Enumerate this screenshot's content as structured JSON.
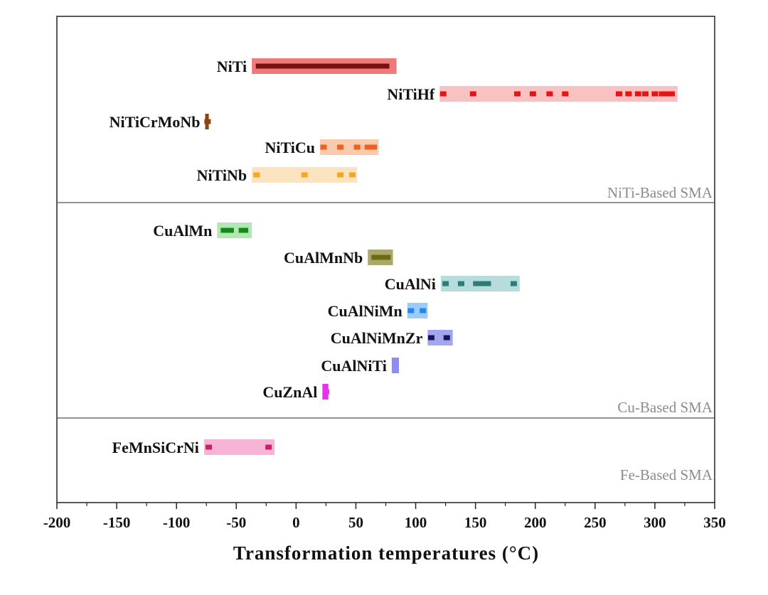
{
  "chart_data": {
    "type": "range-bar",
    "xlabel": "Transformation temperatures (°C)",
    "xlim": [
      -200,
      350
    ],
    "xticks": [
      -200,
      -150,
      -100,
      -50,
      0,
      50,
      100,
      150,
      200,
      250,
      300,
      350
    ],
    "groups": [
      {
        "label": "NiTi-Based SMA",
        "alloys": [
          {
            "name": "NiTi",
            "range": [
              -37,
              84
            ],
            "color": "#ee7a7a",
            "marker_color": "#7a1010",
            "markers": [
              -31,
              0,
              30,
              52,
              75
            ],
            "segments": [
              [
                -33,
                78
              ]
            ]
          },
          {
            "name": "NiTiHf",
            "range": [
              120,
              319
            ],
            "color": "#f9c2c2",
            "marker_color": "#ee1111",
            "markers": [
              123,
              148,
              185,
              198,
              212,
              225,
              270,
              278,
              286,
              292,
              300,
              306,
              310,
              314
            ],
            "segments": []
          },
          {
            "name": "NiTiCrMoNb",
            "range": [
              -76,
              -73
            ],
            "color": "#8b4513",
            "marker_color": "#8b4513",
            "markers": [
              -74
            ],
            "segments": []
          },
          {
            "name": "NiTiCu",
            "range": [
              20,
              69
            ],
            "color": "#fbc9ad",
            "marker_color": "#ee6020",
            "markers": [
              23,
              37,
              51,
              60,
              65
            ],
            "segments": []
          },
          {
            "name": "NiTiNb",
            "range": [
              -37,
              51
            ],
            "color": "#fce3bf",
            "marker_color": "#f5a623",
            "markers": [
              -33,
              7,
              37,
              47
            ],
            "segments": []
          }
        ]
      },
      {
        "label": "Cu-Based SMA",
        "alloys": [
          {
            "name": "CuAlMn",
            "range": [
              -66,
              -37
            ],
            "color": "#b3e6b3",
            "marker_color": "#138a13",
            "markers": [],
            "segments": [
              [
                -63,
                -52
              ],
              [
                -48,
                -40
              ]
            ]
          },
          {
            "name": "CuAlMnNb",
            "range": [
              60,
              81
            ],
            "color": "#a8a868",
            "marker_color": "#6b6b10",
            "markers": [],
            "segments": [
              [
                63,
                79
              ]
            ]
          },
          {
            "name": "CuAlNi",
            "range": [
              121,
              187
            ],
            "color": "#b6dcdc",
            "marker_color": "#2e7c74",
            "markers": [
              125,
              138,
              182
            ],
            "segments": [
              [
                148,
                163
              ]
            ]
          },
          {
            "name": "CuAlNiMn",
            "range": [
              93,
              110
            ],
            "color": "#9ccbf7",
            "marker_color": "#1e8af0",
            "markers": [
              96,
              106
            ],
            "segments": []
          },
          {
            "name": "CuAlNiMnZr",
            "range": [
              110,
              131
            ],
            "color": "#a5a5ee",
            "marker_color": "#131360",
            "markers": [
              113,
              126
            ],
            "segments": []
          },
          {
            "name": "CuAlNiTi",
            "range": [
              80,
              86
            ],
            "color": "#8c8cf2",
            "marker_color": "#8c8cf2",
            "markers": [
              83
            ],
            "segments": []
          },
          {
            "name": "CuZnAl",
            "range": [
              22,
              27
            ],
            "color": "#e832e8",
            "marker_color": "#e832e8",
            "markers": [
              25
            ],
            "segments": []
          }
        ]
      },
      {
        "label": "Fe-Based SMA",
        "alloys": [
          {
            "name": "FeMnSiCrNi",
            "range": [
              -77,
              -18
            ],
            "color": "#f8b4d4",
            "marker_color": "#d01a75",
            "markers": [
              -73,
              -23
            ],
            "segments": []
          }
        ]
      }
    ],
    "grid": false,
    "legend": "none"
  }
}
